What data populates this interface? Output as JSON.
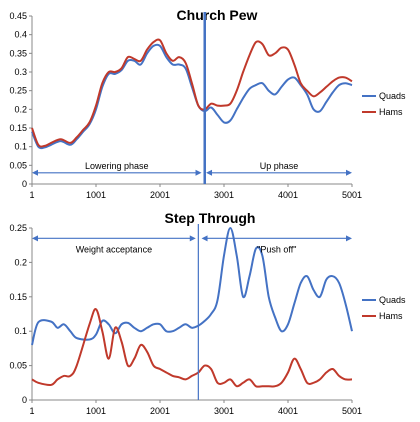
{
  "chart_data": [
    {
      "type": "line",
      "title": "Church Pew",
      "x_ticks": [
        1,
        1001,
        2001,
        3001,
        4001,
        5001
      ],
      "xlim": [
        1,
        5001
      ],
      "y_ticks": [
        "0",
        "0.05",
        "0.1",
        "0.15",
        "0.2",
        "0.25",
        "0.3",
        "0.35",
        "0.4",
        "0.45"
      ],
      "ylim": [
        0,
        0.45
      ],
      "legend_position": "right",
      "colors": {
        "Quads": "#4472C4",
        "Hams": "#C0392B",
        "annotation": "#4472C4"
      },
      "series": [
        {
          "name": "Quads",
          "x": [
            1,
            100,
            200,
            300,
            450,
            600,
            700,
            800,
            900,
            1001,
            1100,
            1200,
            1300,
            1400,
            1500,
            1600,
            1700,
            1800,
            1900,
            2001,
            2100,
            2200,
            2300,
            2400,
            2500,
            2600,
            2700,
            2800,
            2900,
            3001,
            3100,
            3200,
            3300,
            3400,
            3500,
            3600,
            3700,
            3800,
            3900,
            4001,
            4100,
            4200,
            4300,
            4400,
            4500,
            4600,
            4700,
            4800,
            4900,
            5001
          ],
          "values": [
            0.14,
            0.1,
            0.098,
            0.105,
            0.115,
            0.105,
            0.12,
            0.14,
            0.16,
            0.2,
            0.26,
            0.295,
            0.295,
            0.305,
            0.33,
            0.33,
            0.32,
            0.35,
            0.37,
            0.37,
            0.34,
            0.32,
            0.32,
            0.31,
            0.26,
            0.21,
            0.195,
            0.205,
            0.185,
            0.165,
            0.17,
            0.2,
            0.23,
            0.255,
            0.265,
            0.27,
            0.25,
            0.24,
            0.26,
            0.28,
            0.285,
            0.265,
            0.24,
            0.2,
            0.195,
            0.22,
            0.245,
            0.265,
            0.27,
            0.265
          ]
        },
        {
          "name": "Hams",
          "x": [
            1,
            100,
            200,
            300,
            450,
            600,
            700,
            800,
            900,
            1001,
            1100,
            1200,
            1300,
            1400,
            1500,
            1600,
            1700,
            1800,
            1900,
            2001,
            2100,
            2200,
            2300,
            2400,
            2500,
            2600,
            2700,
            2800,
            2900,
            3001,
            3100,
            3200,
            3300,
            3400,
            3500,
            3600,
            3700,
            3800,
            3900,
            4001,
            4100,
            4200,
            4300,
            4400,
            4500,
            4600,
            4700,
            4800,
            4900,
            5001
          ],
          "values": [
            0.15,
            0.105,
            0.102,
            0.11,
            0.12,
            0.11,
            0.125,
            0.145,
            0.165,
            0.21,
            0.27,
            0.3,
            0.3,
            0.31,
            0.34,
            0.335,
            0.33,
            0.36,
            0.38,
            0.385,
            0.35,
            0.33,
            0.34,
            0.325,
            0.27,
            0.21,
            0.2,
            0.215,
            0.21,
            0.21,
            0.215,
            0.25,
            0.3,
            0.345,
            0.38,
            0.375,
            0.345,
            0.35,
            0.365,
            0.36,
            0.32,
            0.27,
            0.25,
            0.235,
            0.245,
            0.26,
            0.275,
            0.285,
            0.285,
            0.275
          ]
        }
      ],
      "divider_x": 2700,
      "annotations": [
        {
          "text": "Lowering phase",
          "from": 1,
          "to": 2650,
          "y": 0.03
        },
        {
          "text": "Up phase",
          "from": 2720,
          "to": 5001,
          "y": 0.03
        }
      ]
    },
    {
      "type": "line",
      "title": "Step Through",
      "x_ticks": [
        1,
        1001,
        2001,
        3001,
        4001,
        5001
      ],
      "xlim": [
        1,
        5001
      ],
      "y_ticks": [
        "0",
        "0.05",
        "0.1",
        "0.15",
        "0.2",
        "0.25"
      ],
      "ylim": [
        0,
        0.25
      ],
      "legend_position": "right",
      "colors": {
        "Quads": "#4472C4",
        "Hams": "#C0392B",
        "annotation": "#4472C4"
      },
      "series": [
        {
          "name": "Quads",
          "x": [
            1,
            100,
            300,
            400,
            500,
            600,
            700,
            900,
            1001,
            1100,
            1200,
            1300,
            1400,
            1500,
            1600,
            1700,
            1800,
            1900,
            2001,
            2100,
            2200,
            2300,
            2400,
            2500,
            2600,
            2700,
            2800,
            2900,
            3001,
            3100,
            3200,
            3300,
            3400,
            3500,
            3600,
            3700,
            3800,
            3900,
            4001,
            4100,
            4200,
            4300,
            4400,
            4500,
            4600,
            4700,
            4800,
            4900,
            5001
          ],
          "values": [
            0.08,
            0.113,
            0.114,
            0.105,
            0.11,
            0.1,
            0.09,
            0.088,
            0.095,
            0.115,
            0.11,
            0.097,
            0.11,
            0.112,
            0.105,
            0.1,
            0.105,
            0.11,
            0.11,
            0.1,
            0.1,
            0.105,
            0.11,
            0.105,
            0.108,
            0.115,
            0.125,
            0.145,
            0.21,
            0.25,
            0.21,
            0.15,
            0.18,
            0.22,
            0.21,
            0.15,
            0.12,
            0.1,
            0.11,
            0.14,
            0.17,
            0.18,
            0.16,
            0.15,
            0.175,
            0.18,
            0.17,
            0.14,
            0.1
          ]
        },
        {
          "name": "Hams",
          "x": [
            1,
            100,
            300,
            400,
            500,
            600,
            700,
            900,
            1001,
            1100,
            1200,
            1300,
            1400,
            1500,
            1600,
            1700,
            1800,
            1900,
            2001,
            2100,
            2200,
            2300,
            2400,
            2500,
            2600,
            2700,
            2800,
            2900,
            3001,
            3100,
            3200,
            3300,
            3400,
            3500,
            3600,
            3700,
            3800,
            3900,
            4001,
            4100,
            4200,
            4300,
            4400,
            4500,
            4600,
            4700,
            4800,
            4900,
            5001
          ],
          "values": [
            0.03,
            0.025,
            0.022,
            0.03,
            0.035,
            0.035,
            0.05,
            0.11,
            0.132,
            0.1,
            0.06,
            0.105,
            0.085,
            0.05,
            0.06,
            0.08,
            0.07,
            0.05,
            0.045,
            0.04,
            0.035,
            0.033,
            0.03,
            0.035,
            0.04,
            0.05,
            0.045,
            0.025,
            0.025,
            0.03,
            0.02,
            0.025,
            0.03,
            0.02,
            0.02,
            0.02,
            0.02,
            0.025,
            0.04,
            0.06,
            0.045,
            0.025,
            0.025,
            0.03,
            0.04,
            0.045,
            0.035,
            0.03,
            0.03
          ]
        }
      ],
      "divider_x": 2600,
      "annotations": [
        {
          "text": "Weight acceptance",
          "from": 1,
          "to": 2560,
          "y": 0.235
        },
        {
          "text": "\"Push off\"",
          "from": 2650,
          "to": 5001,
          "y": 0.235
        }
      ]
    }
  ]
}
